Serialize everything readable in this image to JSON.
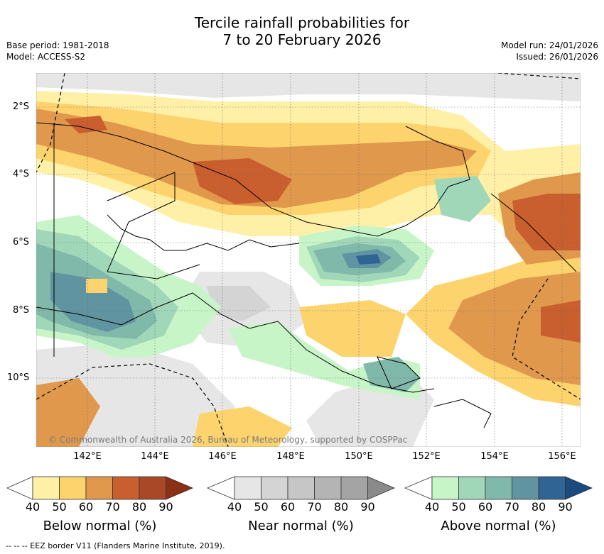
{
  "header": {
    "title_line1": "Tercile rainfall probabilities for",
    "title_line2": "7 to 20 February 2026",
    "base_period": "Base period: 1981-2018",
    "model": "Model: ACCESS-S2",
    "model_run": "Model run: 24/01/2026",
    "issued": "Issued: 26/01/2026"
  },
  "map": {
    "lat_labels": [
      "2°S",
      "4°S",
      "6°S",
      "8°S",
      "10°S"
    ],
    "lon_labels": [
      "142°E",
      "144°E",
      "146°E",
      "148°E",
      "150°E",
      "152°E",
      "154°E",
      "156°E"
    ],
    "copyright": "© Commonwealth of Australia 2026, Bureau of Meteorology, supported by COSPPac",
    "colors": {
      "below": [
        "#fff0a8",
        "#fdd36e",
        "#e0984c",
        "#c95e2e",
        "#a84826",
        "#8b3015"
      ],
      "near": [
        "#e6e6e6",
        "#d4d4d4",
        "#c6c6c6",
        "#b4b4b4",
        "#a4a4a4",
        "#8a8a8a"
      ],
      "above": [
        "#c8f5c8",
        "#a0d7b9",
        "#80b8aa",
        "#5f94a0",
        "#2f6494",
        "#1b4a80"
      ],
      "land_outline": "#000000"
    }
  },
  "colorbars": {
    "below": {
      "title": "Below normal (%)",
      "ticks": [
        "40",
        "50",
        "60",
        "70",
        "80",
        "90"
      ]
    },
    "near": {
      "title": "Near normal (%)",
      "ticks": [
        "40",
        "50",
        "60",
        "70",
        "80",
        "90"
      ]
    },
    "above": {
      "title": "Above normal (%)",
      "ticks": [
        "40",
        "50",
        "60",
        "70",
        "80",
        "90"
      ]
    }
  },
  "footnote": "--  --  -- EEZ border V11 (Flanders Marine Institute, 2019)."
}
